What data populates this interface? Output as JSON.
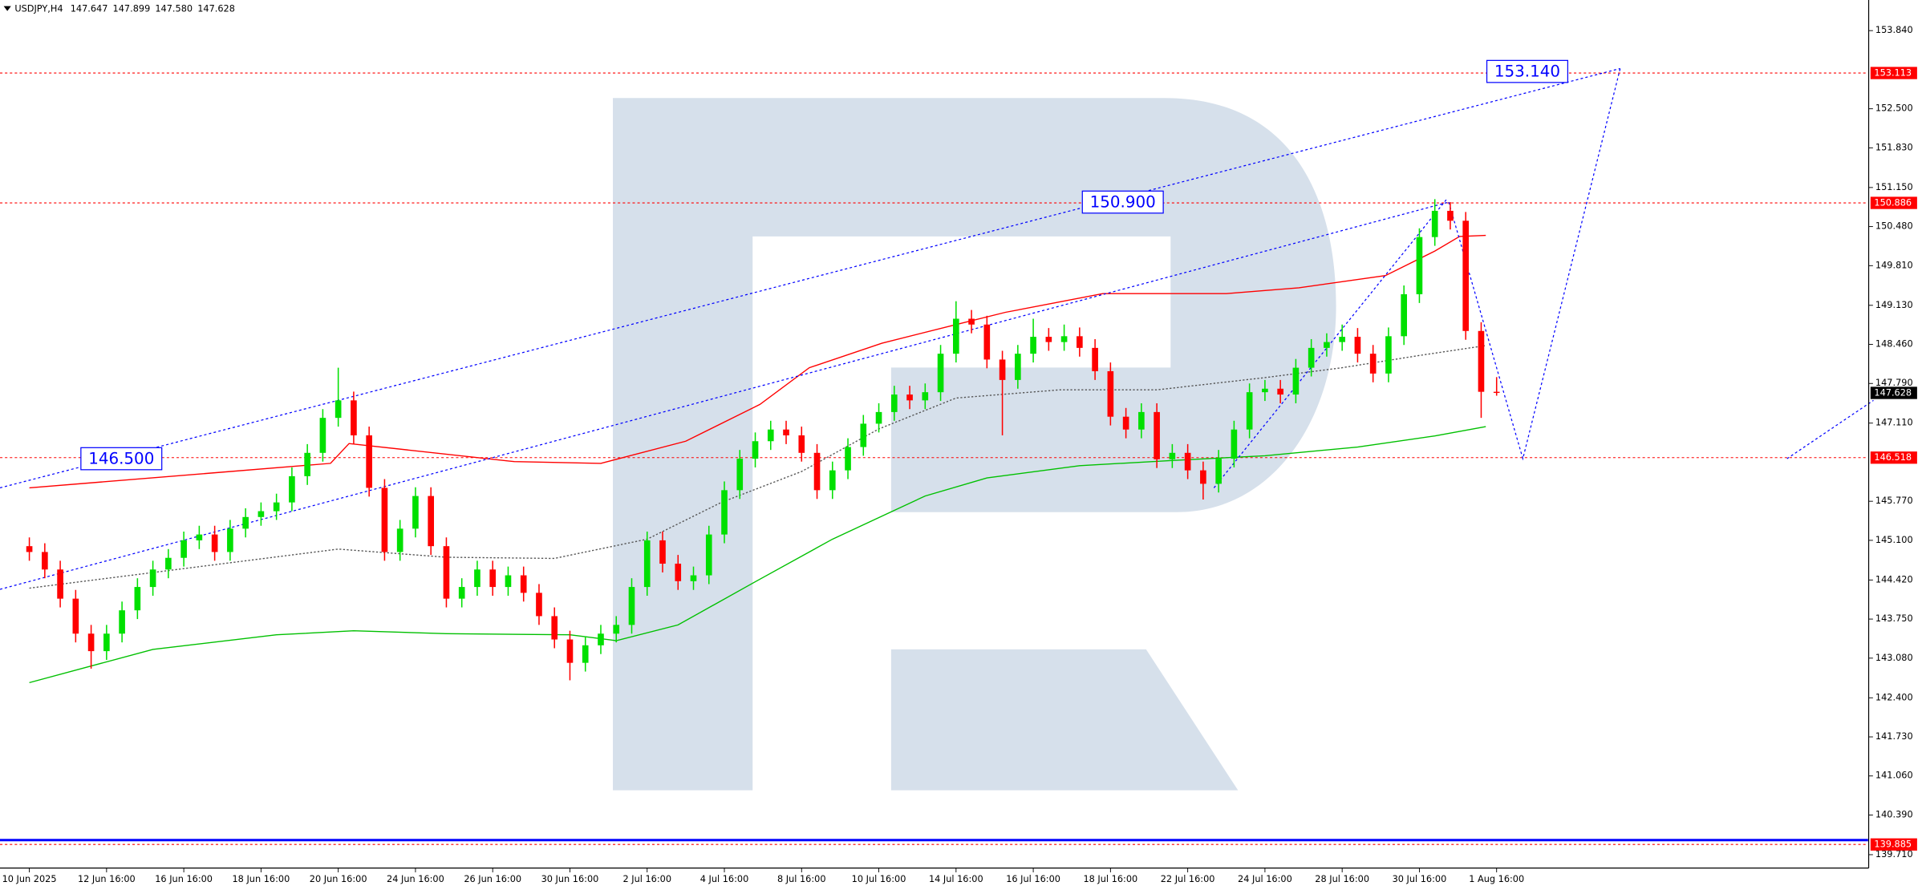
{
  "chart_data": {
    "type": "candlestick",
    "title": "USDJPY,H4",
    "header_values": [
      147.647,
      147.899,
      {
        "value": 147.58,
        "label": "147.580"
      },
      147.628
    ],
    "categories": [
      "10 Jun 2025",
      null,
      null,
      null,
      null,
      "12 Jun 16:00",
      null,
      null,
      null,
      null,
      "16 Jun 16:00",
      null,
      null,
      null,
      null,
      "18 Jun 16:00",
      null,
      null,
      null,
      null,
      "20 Jun 16:00",
      null,
      null,
      null,
      null,
      "24 Jun 16:00",
      null,
      null,
      null,
      null,
      "26 Jun 16:00",
      null,
      null,
      null,
      null,
      "30 Jun 16:00",
      null,
      null,
      null,
      null,
      "2 Jul 16:00",
      null,
      null,
      null,
      null,
      "4 Jul 16:00",
      null,
      null,
      null,
      null,
      "8 Jul 16:00",
      null,
      null,
      null,
      null,
      "10 Jul 16:00",
      null,
      null,
      null,
      null,
      "14 Jul 16:00",
      null,
      null,
      null,
      null,
      "16 Jul 16:00",
      null,
      null,
      null,
      null,
      "18 Jul 16:00",
      null,
      null,
      null,
      null,
      "22 Jul 16:00",
      null,
      null,
      null,
      null,
      "24 Jul 16:00",
      null,
      null,
      null,
      null,
      "28 Jul 16:00",
      null,
      null,
      null,
      null,
      "30 Jul 16:00",
      null,
      null,
      null,
      null,
      "1 Aug 16:00"
    ],
    "open": [
      145.0,
      144.9,
      144.6,
      144.1,
      143.5,
      143.2,
      143.5,
      143.9,
      144.3,
      144.6,
      144.8,
      145.1,
      145.2,
      144.9,
      145.3,
      145.5,
      145.6,
      145.75,
      146.2,
      146.6,
      147.2,
      147.5,
      146.9,
      146.0,
      144.9,
      145.3,
      145.86,
      145.0,
      144.1,
      144.3,
      144.6,
      144.3,
      144.5,
      144.2,
      143.8,
      143.4,
      143.0,
      143.3,
      143.5,
      143.65,
      144.3,
      145.1,
      144.7,
      144.4,
      144.5,
      145.2,
      145.96,
      146.5,
      146.8,
      147.0,
      146.9,
      146.6,
      145.96,
      146.3,
      146.7,
      147.1,
      147.3,
      147.6,
      147.5,
      147.64,
      148.3,
      148.9,
      148.8,
      148.2,
      147.85,
      148.3,
      148.59,
      148.5,
      148.6,
      148.4,
      148.0,
      147.22,
      147.0,
      147.3,
      146.49,
      146.6,
      146.3,
      146.07,
      146.5,
      147.0,
      147.64,
      147.7,
      147.6,
      148.06,
      148.4,
      148.5,
      148.59,
      148.3,
      147.96,
      148.6,
      149.32,
      150.3,
      150.75,
      150.58,
      148.69,
      147.647
    ],
    "high": [
      145.15,
      145.05,
      144.75,
      144.25,
      143.65,
      143.65,
      144.05,
      144.45,
      144.75,
      144.95,
      145.25,
      145.35,
      145.35,
      145.45,
      145.65,
      145.75,
      145.9,
      146.35,
      146.75,
      147.35,
      148.06,
      147.65,
      147.05,
      146.15,
      145.45,
      146.01,
      146.01,
      145.15,
      144.45,
      144.75,
      144.75,
      144.65,
      144.65,
      144.35,
      143.95,
      143.55,
      143.45,
      143.65,
      143.8,
      144.45,
      145.25,
      145.25,
      144.85,
      144.65,
      145.35,
      146.11,
      146.65,
      146.95,
      147.15,
      147.15,
      147.05,
      146.75,
      146.45,
      146.85,
      147.25,
      147.45,
      147.75,
      147.75,
      147.79,
      148.45,
      149.2,
      149.05,
      148.95,
      148.35,
      148.45,
      148.9,
      148.74,
      148.8,
      148.75,
      148.55,
      148.15,
      147.37,
      147.45,
      147.45,
      146.75,
      146.75,
      146.45,
      146.65,
      147.15,
      147.79,
      147.85,
      147.85,
      148.21,
      148.55,
      148.65,
      148.8,
      148.74,
      148.45,
      148.75,
      149.47,
      150.45,
      150.95,
      150.9,
      150.73,
      148.84,
      147.899
    ],
    "low": [
      144.75,
      144.45,
      143.95,
      143.35,
      142.9,
      143.05,
      143.35,
      143.75,
      144.15,
      144.45,
      144.65,
      144.95,
      144.75,
      144.75,
      145.15,
      145.35,
      145.45,
      145.6,
      146.05,
      146.45,
      147.05,
      146.75,
      145.85,
      144.75,
      144.75,
      145.15,
      144.85,
      143.95,
      143.95,
      144.15,
      144.15,
      144.15,
      144.05,
      143.65,
      143.25,
      142.7,
      142.85,
      143.15,
      143.35,
      143.5,
      144.15,
      144.55,
      144.25,
      144.25,
      144.35,
      145.05,
      145.81,
      146.35,
      146.65,
      146.75,
      146.45,
      145.81,
      145.81,
      146.15,
      146.55,
      146.95,
      147.15,
      147.35,
      147.35,
      147.49,
      148.15,
      148.65,
      148.05,
      146.9,
      147.7,
      148.15,
      148.35,
      148.35,
      148.25,
      147.85,
      147.07,
      146.85,
      146.85,
      146.34,
      146.34,
      146.15,
      145.8,
      145.92,
      146.35,
      146.85,
      147.49,
      147.45,
      147.45,
      147.91,
      148.25,
      148.35,
      148.15,
      147.81,
      147.81,
      148.45,
      149.17,
      150.15,
      150.43,
      148.54,
      147.2,
      147.58
    ],
    "close": [
      144.9,
      144.6,
      144.1,
      143.5,
      143.2,
      143.5,
      143.9,
      144.3,
      144.6,
      144.8,
      145.1,
      145.2,
      144.9,
      145.3,
      145.5,
      145.6,
      145.75,
      146.2,
      146.6,
      147.2,
      147.5,
      146.9,
      146.0,
      144.9,
      145.3,
      145.86,
      145.0,
      144.1,
      144.3,
      144.6,
      144.3,
      144.5,
      144.2,
      143.8,
      143.4,
      143.0,
      143.3,
      143.5,
      143.65,
      144.3,
      145.1,
      144.7,
      144.4,
      144.5,
      145.2,
      145.96,
      146.5,
      146.8,
      147.0,
      146.9,
      146.6,
      145.96,
      146.3,
      146.7,
      147.1,
      147.3,
      147.6,
      147.5,
      147.64,
      148.3,
      148.9,
      148.8,
      148.2,
      147.85,
      148.3,
      148.59,
      148.5,
      148.6,
      148.4,
      148.0,
      147.22,
      147.0,
      147.3,
      146.49,
      146.6,
      146.3,
      146.07,
      146.5,
      147.0,
      147.64,
      147.7,
      147.6,
      148.06,
      148.4,
      148.5,
      148.59,
      148.3,
      147.96,
      148.6,
      149.32,
      150.3,
      150.75,
      150.58,
      148.69,
      147.647,
      147.628
    ],
    "up_color": "#00e000",
    "down_color": "#ff0000",
    "indicators": [
      {
        "color": "#ff0000",
        "dashed": false,
        "x": [
          0,
          19.5,
          20.7,
          31.4,
          37,
          42.5,
          47.3,
          50.5,
          55.2,
          60,
          63.2,
          69.5,
          77.5,
          82.2,
          87.8,
          91,
          92.6,
          94.3
        ],
        "values": [
          146.0,
          146.42,
          146.76,
          146.45,
          146.42,
          146.8,
          147.43,
          148.06,
          148.48,
          148.8,
          149.01,
          149.33,
          149.33,
          149.43,
          149.64,
          150.06,
          150.31,
          150.33
        ]
      },
      {
        "color": "#555555",
        "dashed": true,
        "x": [
          0,
          20,
          27,
          34,
          40,
          44.8,
          50,
          55,
          60,
          66.7,
          73,
          80,
          85,
          90,
          94.3
        ],
        "values": [
          144.28,
          144.95,
          144.81,
          144.79,
          145.12,
          145.75,
          146.28,
          147.01,
          147.54,
          147.68,
          147.68,
          147.89,
          148.06,
          148.27,
          148.44
        ]
      },
      {
        "color": "#00c000",
        "dashed": false,
        "x": [
          0,
          8,
          16,
          21,
          27,
          35,
          38,
          42,
          47,
          52,
          58,
          62,
          68,
          74,
          80,
          86,
          91,
          94.3
        ],
        "values": [
          142.66,
          143.23,
          143.48,
          143.55,
          143.5,
          143.48,
          143.38,
          143.65,
          144.39,
          145.12,
          145.86,
          146.17,
          146.38,
          146.47,
          146.55,
          146.7,
          146.89,
          147.05
        ]
      }
    ],
    "forecast_color": "#0000ff",
    "forecast": [
      {
        "x": [
          -1.9,
          103
        ],
        "values": [
          146.0,
          153.19
        ]
      },
      {
        "x": [
          -1.9,
          91.9
        ],
        "values": [
          144.26,
          150.9
        ]
      },
      {
        "x": [
          76.7,
          91.8
        ],
        "values": [
          146.0,
          150.96
        ]
      },
      {
        "x": [
          91.9,
          96.7,
          103
        ],
        "values": [
          150.9,
          146.5,
          153.19
        ]
      },
      {
        "x": [
          113.8,
          119.4
        ],
        "values": [
          146.5,
          147.5
        ]
      }
    ],
    "annotations": [
      {
        "value": 153.14,
        "label": "153.140"
      },
      {
        "value": 150.9,
        "label": "150.900"
      },
      {
        "value": 146.5,
        "label": "146.500"
      }
    ],
    "price_tags": [
      {
        "value": 153.113,
        "color": "#ff0000",
        "line": true
      },
      {
        "value": 150.886,
        "color": "#ff0000",
        "line": true
      },
      {
        "value": 147.628,
        "color": "#000000",
        "line": false
      },
      {
        "value": 146.518,
        "color": "#ff0000",
        "line": true
      },
      {
        "value": 139.885,
        "color": "#ff0000",
        "line": true
      }
    ],
    "baseline": {
      "value": 139.96,
      "color": "#0000ff"
    },
    "xlim": [
      -1.9,
      119.05
    ],
    "ylim": [
      139.491,
      154.365
    ],
    "yticks": [
      {
        "value": 153.84,
        "label": "153.840"
      },
      {
        "value": 152.5,
        "label": "152.500"
      },
      {
        "value": 151.83,
        "label": "151.830"
      },
      {
        "value": 151.15,
        "label": "151.150"
      },
      {
        "value": 150.48,
        "label": "150.480"
      },
      {
        "value": 149.81,
        "label": "149.810"
      },
      {
        "value": 149.13,
        "label": "149.130"
      },
      {
        "value": 148.46,
        "label": "148.460"
      },
      {
        "value": 147.79,
        "label": "147.790"
      },
      {
        "value": 147.11,
        "label": "147.110"
      },
      {
        "value": 145.77,
        "label": "145.770"
      },
      {
        "value": 145.1,
        "label": "145.100"
      },
      {
        "value": 144.42,
        "label": "144.420"
      },
      {
        "value": 143.75,
        "label": "143.750"
      },
      {
        "value": 143.08,
        "label": "143.080"
      },
      {
        "value": 142.4,
        "label": "142.400"
      },
      {
        "value": 141.73,
        "label": "141.730"
      },
      {
        "value": 141.06,
        "label": "141.060"
      },
      {
        "value": 140.39,
        "label": "140.390"
      },
      {
        "value": 139.71,
        "label": "139.710"
      }
    ]
  }
}
